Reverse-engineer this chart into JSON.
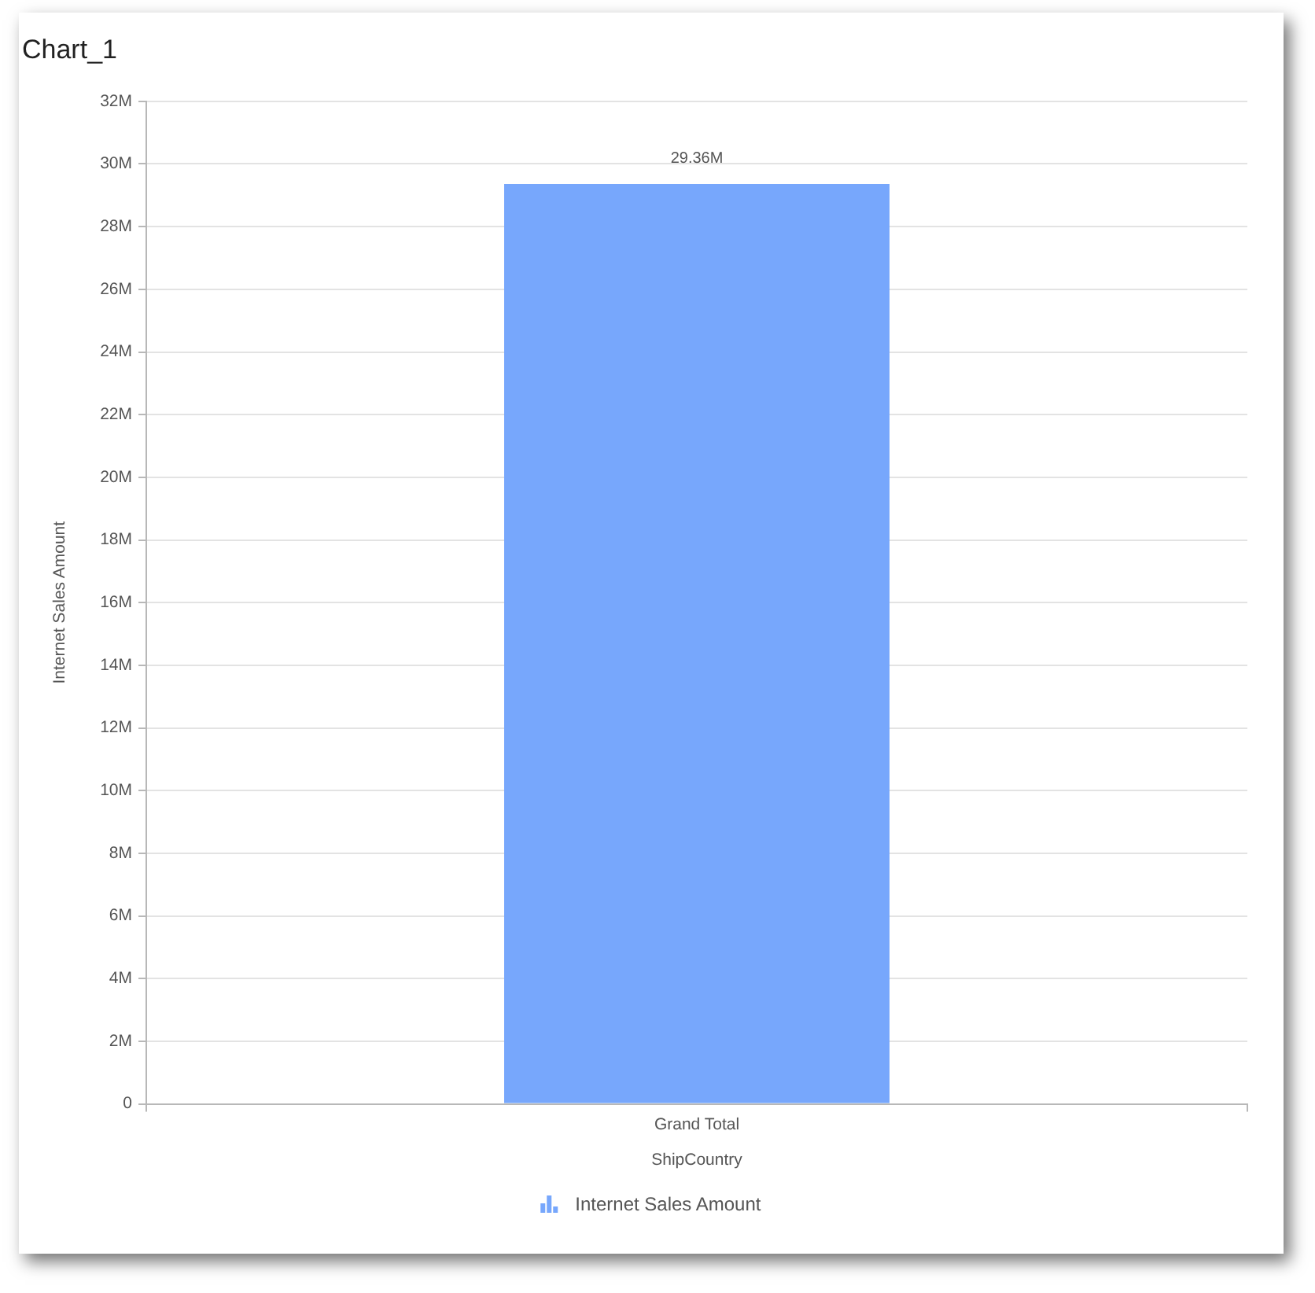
{
  "chart_data": {
    "type": "bar",
    "title": "Chart_1",
    "xlabel": "ShipCountry",
    "ylabel": "Internet Sales Amount",
    "categories": [
      "Grand Total"
    ],
    "series": [
      {
        "name": "Internet Sales Amount",
        "color": "#77a7fc",
        "values": [
          29360000
        ],
        "value_labels": [
          "29.36M"
        ]
      }
    ],
    "ylim": [
      0,
      32000000
    ],
    "yticks": [
      0,
      {
        "value": 2000000,
        "label": "2M"
      },
      {
        "value": 4000000,
        "label": "4M"
      },
      {
        "value": 6000000,
        "label": "6M"
      },
      {
        "value": 8000000,
        "label": "8M"
      },
      {
        "value": 10000000,
        "label": "10M"
      },
      {
        "value": 12000000,
        "label": "12M"
      },
      {
        "value": 14000000,
        "label": "14M"
      },
      {
        "value": 16000000,
        "label": "16M"
      },
      {
        "value": 18000000,
        "label": "18M"
      },
      {
        "value": 20000000,
        "label": "20M"
      },
      {
        "value": 22000000,
        "label": "22M"
      },
      {
        "value": 24000000,
        "label": "24M"
      },
      {
        "value": 26000000,
        "label": "26M"
      },
      {
        "value": 28000000,
        "label": "28M"
      },
      {
        "value": 30000000,
        "label": "30M"
      },
      {
        "value": 32000000,
        "label": "32M"
      }
    ],
    "grid": "y",
    "legend": "bottom"
  }
}
